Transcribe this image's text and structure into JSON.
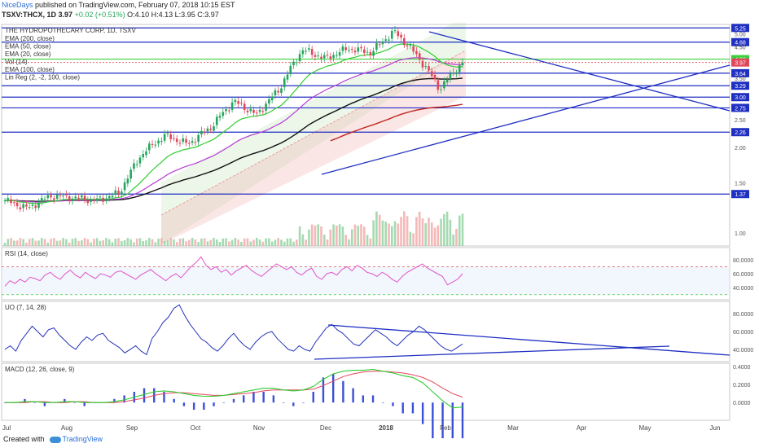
{
  "header": {
    "user": "NiceDays",
    "published": "published on TradingView.com, February 07, 2018 10:15 EST",
    "symbol": "TSXV:THCX, 1D",
    "last": "3.97",
    "change": "+0.02 (+0.51%)",
    "ohlc": "O:4.10 H:4.13 L:3.95 C:3.97"
  },
  "legend": {
    "title": "THE HYDROPOTHECARY CORP, 1D, TSXV",
    "items": [
      "EMA (200, close)",
      "EMA (50, close)",
      "EMA (20, close)",
      "Vol (14)",
      "EMA (100, close)",
      "Lin Reg (2, -2, 100, close)"
    ]
  },
  "panes": {
    "rsi_label": "RSI (14, close)",
    "uo_label": "UO (7, 14, 28)",
    "macd_label": "MACD (12, 26, close, 9)"
  },
  "footer": {
    "created": "Created with",
    "brand": "TradingView"
  },
  "colors": {
    "up": "#26a65b",
    "down": "#e0475b",
    "level": "#1f2fc2",
    "ema20": "#2ecc2e",
    "ema50": "#b83ad6",
    "ema100": "#111111",
    "ema200": "#c0261f",
    "rsi": "#e055c7",
    "macd": "#2ecc2e",
    "signal": "#e0475b"
  },
  "chart_data": [
    {
      "type": "candlestick",
      "title": "THE HYDROPOTHECARY CORP, 1D, TSXV",
      "x_ticks": [
        "Jul",
        "Aug",
        "Sep",
        "Oct",
        "Nov",
        "Dec",
        "2018",
        "Feb",
        "Mar",
        "Apr",
        "May",
        "Jun"
      ],
      "y_ticks": [
        "5.00",
        "4.50",
        "3.50",
        "2.50",
        "2.00",
        "1.50",
        "1.00"
      ],
      "ylim": [
        0.9,
        5.4
      ],
      "scale": "log",
      "price_levels": [
        5.25,
        4.68,
        4.08,
        3.64,
        3.29,
        3.0,
        2.75,
        2.26,
        1.37
      ],
      "last_price": 3.97,
      "green_level": 4.08,
      "close_path": [
        {
          "x": "Jul",
          "y": 1.3
        },
        {
          "x": "mid-Jul",
          "y": 1.22
        },
        {
          "x": "Aug",
          "y": 1.35
        },
        {
          "x": "mid-Aug",
          "y": 1.33
        },
        {
          "x": "Sep",
          "y": 1.3
        },
        {
          "x": "mid-Sep",
          "y": 1.38
        },
        {
          "x": "late-Sep",
          "y": 1.9
        },
        {
          "x": "Oct",
          "y": 2.2
        },
        {
          "x": "mid-Oct",
          "y": 2.05
        },
        {
          "x": "Nov",
          "y": 2.35
        },
        {
          "x": "mid-Nov",
          "y": 2.9
        },
        {
          "x": "late-Nov",
          "y": 2.6
        },
        {
          "x": "Dec",
          "y": 3.2
        },
        {
          "x": "mid-Dec",
          "y": 4.4
        },
        {
          "x": "late-Dec",
          "y": 4.1
        },
        {
          "x": "2018",
          "y": 4.45
        },
        {
          "x": "mid-Jan",
          "y": 4.3
        },
        {
          "x": "late-Jan",
          "y": 5.1
        },
        {
          "x": "end-Jan",
          "y": 4.2
        },
        {
          "x": "Feb",
          "y": 3.2
        },
        {
          "x": "Feb 7",
          "y": 3.97
        }
      ]
    },
    {
      "type": "line",
      "title": "RSI (14, close)",
      "y_ticks": [
        "80.0000",
        "60.0000",
        "40.0000"
      ],
      "ylim": [
        25,
        95
      ],
      "values": [
        42,
        50,
        46,
        52,
        48,
        55,
        53,
        50,
        58,
        62,
        56,
        52,
        60,
        65,
        58,
        54,
        62,
        57,
        53,
        60,
        58,
        55,
        62,
        64,
        60,
        56,
        52,
        58,
        62,
        66,
        60,
        55,
        50,
        56,
        60,
        54,
        62,
        70,
        76,
        84,
        72,
        66,
        70,
        62,
        66,
        58,
        64,
        68,
        72,
        65,
        60,
        56,
        62,
        68,
        74,
        70,
        66,
        70,
        62,
        58,
        64,
        68,
        56,
        52,
        60,
        62,
        58,
        66,
        70,
        64,
        72,
        68,
        62,
        60,
        56,
        62,
        58,
        52,
        48,
        56,
        62,
        66,
        70,
        74,
        68,
        64,
        60,
        56,
        44,
        48,
        52,
        60
      ]
    },
    {
      "type": "line",
      "title": "UO (7, 14, 28)",
      "y_ticks": [
        "80.0000",
        "60.0000",
        "40.0000"
      ],
      "ylim": [
        28,
        92
      ],
      "values": [
        40,
        44,
        38,
        50,
        58,
        66,
        60,
        54,
        62,
        64,
        56,
        50,
        44,
        40,
        48,
        54,
        50,
        56,
        58,
        50,
        46,
        42,
        36,
        40,
        44,
        38,
        34,
        52,
        60,
        70,
        76,
        86,
        90,
        78,
        68,
        60,
        52,
        48,
        42,
        38,
        44,
        52,
        58,
        50,
        44,
        40,
        48,
        54,
        58,
        60,
        52,
        46,
        40,
        38,
        44,
        40,
        38,
        48,
        56,
        64,
        68,
        62,
        58,
        52,
        46,
        44,
        50,
        56,
        62,
        58,
        54,
        48,
        44,
        50,
        56,
        60,
        66,
        62,
        56,
        50,
        44,
        40,
        38,
        42,
        46
      ]
    },
    {
      "type": "line",
      "title": "MACD (12, 26, close, 9)",
      "y_ticks": [
        "0.4000",
        "0.2000",
        "0.0000"
      ],
      "ylim": [
        -0.18,
        0.42
      ],
      "series": [
        {
          "values": [
            0.0,
            0.0,
            0.01,
            0.01,
            0.0,
            0.0,
            0.01,
            0.01,
            0.0,
            0.0,
            0.0,
            0.01,
            0.03,
            0.06,
            0.09,
            0.12,
            0.13,
            0.12,
            0.1,
            0.08,
            0.07,
            0.07,
            0.08,
            0.1,
            0.12,
            0.14,
            0.16,
            0.16,
            0.14,
            0.13,
            0.14,
            0.18,
            0.26,
            0.32,
            0.35,
            0.36,
            0.36,
            0.37,
            0.35,
            0.33,
            0.3,
            0.28,
            0.22,
            0.12,
            0.02,
            -0.06,
            -0.05
          ]
        },
        {
          "values": [
            0.0,
            0.0,
            0.0,
            0.01,
            0.01,
            0.0,
            0.0,
            0.01,
            0.01,
            0.0,
            0.0,
            0.0,
            0.01,
            0.03,
            0.05,
            0.08,
            0.1,
            0.11,
            0.11,
            0.1,
            0.09,
            0.08,
            0.08,
            0.09,
            0.1,
            0.11,
            0.13,
            0.14,
            0.14,
            0.14,
            0.14,
            0.15,
            0.19,
            0.24,
            0.29,
            0.32,
            0.34,
            0.35,
            0.35,
            0.34,
            0.33,
            0.31,
            0.28,
            0.23,
            0.16,
            0.1,
            0.06
          ]
        }
      ]
    }
  ]
}
